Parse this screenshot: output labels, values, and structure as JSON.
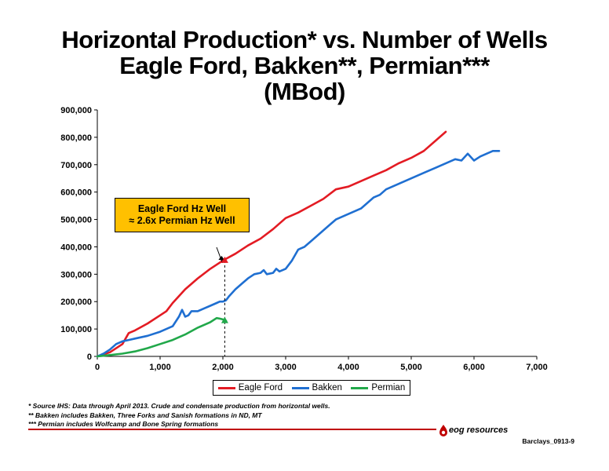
{
  "title": {
    "line1": "Horizontal Production* vs. Number of Wells",
    "line2": "Eagle Ford, Bakken**, Permian***",
    "line3": "(MBod)"
  },
  "callout": {
    "line1": "Eagle Ford Hz Well",
    "line2": "≈ 2.6x Permian Hz Well"
  },
  "footnotes": {
    "line1": "* Source IHS: Data through April 2013. Crude and condensate production from horizontal wells.",
    "line2": "** Bakken includes Bakken, Three Forks and Sanish formations in ND, MT",
    "line3": "*** Permian includes Wolfcamp and Bone Spring formations"
  },
  "logo": {
    "text": "eog resources",
    "icon": "flame-drop-icon"
  },
  "page_id": "Barclays_0913-9",
  "colors": {
    "eagle_ford": "#e31b23",
    "bakken": "#1f6fd1",
    "permian": "#21a84a",
    "callout_fill": "#ffc000",
    "rule": "#c00000"
  },
  "chart_data": {
    "type": "line",
    "title": "Horizontal Production* vs. Number of Wells",
    "xlim": [
      0,
      7000
    ],
    "ylim": [
      0,
      900000
    ],
    "x_ticks": [
      0,
      1000,
      2000,
      3000,
      4000,
      5000,
      6000,
      7000
    ],
    "x_tick_labels": [
      "0",
      "1,000",
      "2,000",
      "3,000",
      "4,000",
      "5,000",
      "6,000",
      "7,000"
    ],
    "y_ticks": [
      0,
      100000,
      200000,
      300000,
      400000,
      500000,
      600000,
      700000,
      800000,
      900000
    ],
    "y_tick_labels": [
      "0",
      "100,000",
      "200,000",
      "300,000",
      "400,000",
      "500,000",
      "600,000",
      "700,000",
      "800,000",
      "900,000"
    ],
    "grid": false,
    "legend_position": "bottom",
    "reference_line_x": 2030,
    "series": [
      {
        "name": "Eagle Ford",
        "color": "#e31b23",
        "x": [
          0,
          200,
          400,
          500,
          600,
          800,
          1000,
          1100,
          1200,
          1400,
          1600,
          1800,
          2000,
          2200,
          2400,
          2600,
          2800,
          3000,
          3200,
          3400,
          3600,
          3800,
          4000,
          4200,
          4400,
          4600,
          4800,
          5000,
          5200,
          5400,
          5550
        ],
        "y": [
          0,
          15000,
          45000,
          85000,
          95000,
          120000,
          150000,
          165000,
          195000,
          245000,
          285000,
          320000,
          350000,
          375000,
          405000,
          430000,
          465000,
          505000,
          525000,
          550000,
          575000,
          610000,
          620000,
          640000,
          660000,
          680000,
          705000,
          725000,
          750000,
          790000,
          820000
        ]
      },
      {
        "name": "Bakken",
        "color": "#1f6fd1",
        "x": [
          0,
          100,
          200,
          300,
          400,
          500,
          600,
          800,
          1000,
          1200,
          1300,
          1350,
          1400,
          1450,
          1500,
          1600,
          1700,
          1800,
          1900,
          1950,
          2000,
          2050,
          2100,
          2200,
          2300,
          2400,
          2500,
          2600,
          2650,
          2700,
          2800,
          2850,
          2900,
          3000,
          3100,
          3200,
          3300,
          3400,
          3500,
          3600,
          3700,
          3800,
          4000,
          4200,
          4400,
          4500,
          4600,
          4800,
          5000,
          5200,
          5400,
          5600,
          5700,
          5800,
          5900,
          6000,
          6100,
          6200,
          6300,
          6400
        ],
        "y": [
          0,
          10000,
          25000,
          45000,
          55000,
          60000,
          65000,
          75000,
          90000,
          110000,
          145000,
          170000,
          145000,
          150000,
          165000,
          165000,
          175000,
          185000,
          195000,
          200000,
          200000,
          205000,
          220000,
          245000,
          265000,
          285000,
          300000,
          305000,
          315000,
          300000,
          305000,
          320000,
          310000,
          320000,
          350000,
          390000,
          400000,
          420000,
          440000,
          460000,
          480000,
          500000,
          520000,
          540000,
          580000,
          590000,
          610000,
          630000,
          650000,
          670000,
          690000,
          710000,
          720000,
          715000,
          740000,
          715000,
          730000,
          740000,
          750000,
          750000
        ]
      },
      {
        "name": "Permian",
        "color": "#21a84a",
        "x": [
          0,
          200,
          400,
          600,
          800,
          1000,
          1200,
          1400,
          1600,
          1800,
          1900,
          1950,
          2000,
          2050
        ],
        "y": [
          0,
          5000,
          10000,
          18000,
          30000,
          45000,
          60000,
          80000,
          105000,
          125000,
          140000,
          138000,
          135000,
          130000
        ]
      }
    ]
  }
}
